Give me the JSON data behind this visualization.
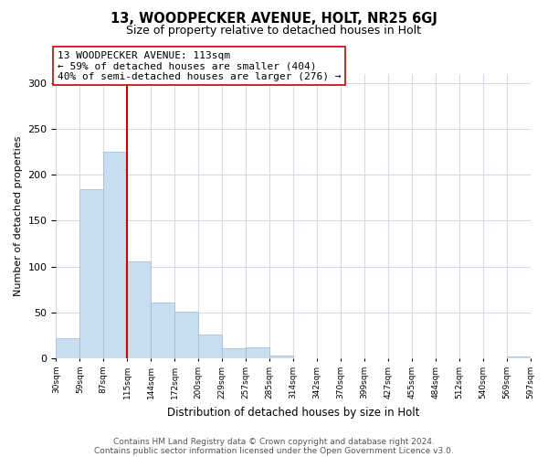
{
  "title": "13, WOODPECKER AVENUE, HOLT, NR25 6GJ",
  "subtitle": "Size of property relative to detached houses in Holt",
  "xlabel": "Distribution of detached houses by size in Holt",
  "ylabel": "Number of detached properties",
  "bar_values": [
    22,
    184,
    225,
    106,
    61,
    51,
    26,
    11,
    12,
    3,
    0,
    0,
    0,
    0,
    0,
    0,
    0,
    0,
    0,
    2
  ],
  "bin_labels": [
    "30sqm",
    "59sqm",
    "87sqm",
    "115sqm",
    "144sqm",
    "172sqm",
    "200sqm",
    "229sqm",
    "257sqm",
    "285sqm",
    "314sqm",
    "342sqm",
    "370sqm",
    "399sqm",
    "427sqm",
    "455sqm",
    "484sqm",
    "512sqm",
    "540sqm",
    "569sqm",
    "597sqm"
  ],
  "bar_color": "#c9ddf0",
  "bar_edge_color": "#9bbad8",
  "vline_x": 3,
  "vline_color": "#cc0000",
  "annotation_lines": [
    "13 WOODPECKER AVENUE: 113sqm",
    "← 59% of detached houses are smaller (404)",
    "40% of semi-detached houses are larger (276) →"
  ],
  "annotation_box_color": "#ffffff",
  "annotation_box_edge": "#cc0000",
  "ylim": [
    0,
    310
  ],
  "yticks": [
    0,
    50,
    100,
    150,
    200,
    250,
    300
  ],
  "footer_lines": [
    "Contains HM Land Registry data © Crown copyright and database right 2024.",
    "Contains public sector information licensed under the Open Government Licence v3.0."
  ],
  "background_color": "#ffffff",
  "grid_color": "#d0d8ea"
}
